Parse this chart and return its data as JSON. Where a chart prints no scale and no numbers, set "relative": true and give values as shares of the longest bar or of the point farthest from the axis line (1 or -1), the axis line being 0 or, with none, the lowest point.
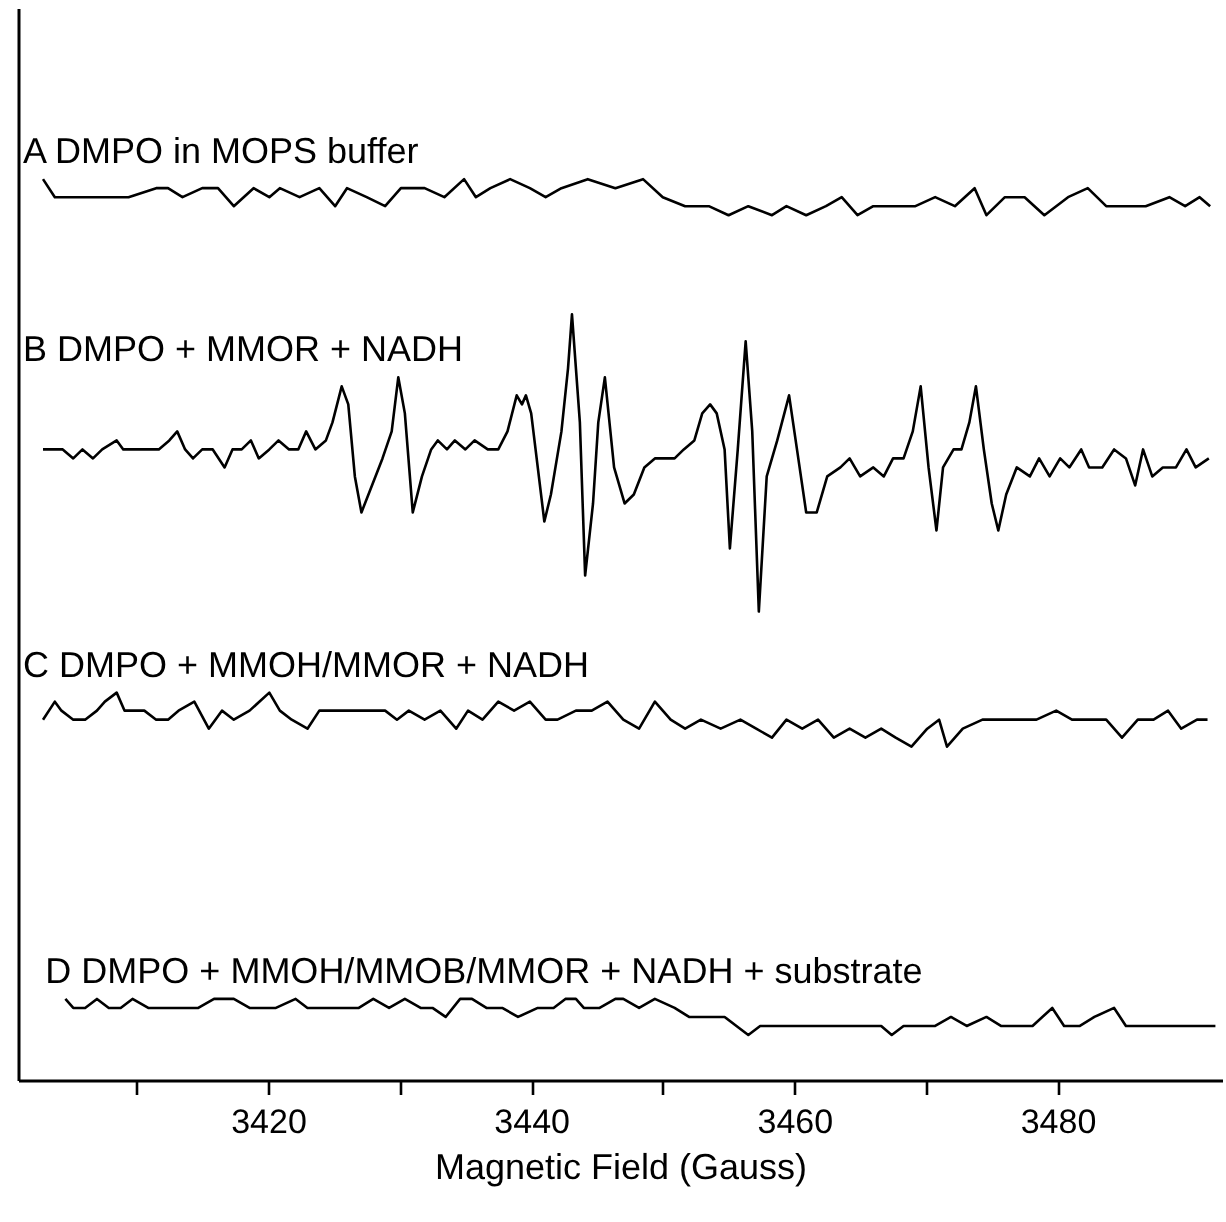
{
  "chart_data": {
    "type": "line",
    "relative": true,
    "xlabel": "Magnetic Field (Gauss)",
    "xlim": [
      3401,
      3492.5
    ],
    "xticks": [
      {
        "value": 3410,
        "label": null
      },
      3420,
      {
        "value": 3430,
        "label": null
      },
      3440,
      {
        "value": 3450,
        "label": null
      },
      3460,
      {
        "value": 3470,
        "label": null
      },
      3480
    ],
    "grid": false,
    "legend": false,
    "series": [
      {
        "name": "A DMPO in MOPS buffer",
        "color": "#000000",
        "x": [
          3402.9,
          3403.8,
          3405.5,
          3406.1,
          3407.9,
          3409.4,
          3411.5,
          3412.4,
          3413.5,
          3415.0,
          3416.2,
          3417.4,
          3418.9,
          3420.1,
          3420.9,
          3422.4,
          3423.9,
          3425.1,
          3426.0,
          3427.5,
          3428.9,
          3430.1,
          3431.9,
          3433.4,
          3434.9,
          3435.8,
          3436.9,
          3438.4,
          3439.9,
          3441.1,
          3442.3,
          3444.3,
          3446.4,
          3448.5,
          3450.0,
          3451.7,
          3453.5,
          3455.0,
          3456.5,
          3458.3,
          3459.4,
          3460.9,
          3462.4,
          3463.6,
          3464.8,
          3466.0,
          3467.7,
          3469.2,
          3470.7,
          3472.2,
          3473.7,
          3474.6,
          3476.0,
          3477.5,
          3479.0,
          3480.8,
          3482.3,
          3483.7,
          3485.2,
          3486.7,
          3488.5,
          3489.7,
          3490.8,
          3491.6
        ],
        "values": [
          1.0,
          0.98,
          0.98,
          0.98,
          0.98,
          0.98,
          0.99,
          0.99,
          0.98,
          0.99,
          0.99,
          0.97,
          0.99,
          0.98,
          0.99,
          0.98,
          0.99,
          0.97,
          0.99,
          0.98,
          0.97,
          0.99,
          0.99,
          0.98,
          1.0,
          0.98,
          0.99,
          1.0,
          0.99,
          0.98,
          0.99,
          1.0,
          0.99,
          1.0,
          0.98,
          0.97,
          0.97,
          0.96,
          0.97,
          0.96,
          0.97,
          0.96,
          0.97,
          0.98,
          0.96,
          0.97,
          0.97,
          0.97,
          0.98,
          0.97,
          0.99,
          0.96,
          0.98,
          0.98,
          0.96,
          0.98,
          0.99,
          0.97,
          0.97,
          0.97,
          0.98,
          0.97,
          0.98,
          0.97
        ],
        "line_style": "solid"
      },
      {
        "name": "B DMPO + MMOR + NADH",
        "color": "#000000",
        "x": [
          3402.9,
          3403.6,
          3404.4,
          3405.2,
          3405.9,
          3406.7,
          3407.4,
          3408.5,
          3409.0,
          3409.7,
          3410.5,
          3411.2,
          3411.7,
          3412.5,
          3413.1,
          3413.7,
          3414.3,
          3415.0,
          3415.8,
          3416.7,
          3417.3,
          3418.0,
          3418.7,
          3419.3,
          3420.1,
          3420.8,
          3421.6,
          3422.3,
          3422.9,
          3423.6,
          3424.4,
          3424.9,
          3425.6,
          3426.1,
          3426.6,
          3427.1,
          3427.9,
          3428.7,
          3429.4,
          3429.9,
          3430.4,
          3431.0,
          3431.7,
          3432.4,
          3432.9,
          3433.6,
          3434.2,
          3435.0,
          3435.7,
          3436.7,
          3437.5,
          3438.2,
          3438.9,
          3439.3,
          3439.6,
          3440.0,
          3440.5,
          3441.0,
          3441.5,
          3442.3,
          3442.8,
          3443.1,
          3443.7,
          3444.1,
          3444.7,
          3445.1,
          3445.6,
          3446.3,
          3447.1,
          3447.8,
          3448.6,
          3449.4,
          3450.1,
          3450.9,
          3451.6,
          3452.4,
          3453.0,
          3453.6,
          3454.1,
          3454.7,
          3455.1,
          3455.7,
          3456.3,
          3456.8,
          3457.3,
          3457.9,
          3458.7,
          3459.6,
          3460.2,
          3460.9,
          3461.7,
          3462.5,
          3463.5,
          3464.2,
          3465.0,
          3466.0,
          3466.8,
          3467.5,
          3468.3,
          3469.0,
          3469.6,
          3470.2,
          3470.8,
          3471.3,
          3472.1,
          3472.7,
          3473.3,
          3473.8,
          3474.4,
          3475.0,
          3475.5,
          3476.1,
          3476.9,
          3477.9,
          3478.6,
          3479.4,
          3480.2,
          3480.9,
          3481.8,
          3482.4,
          3483.4,
          3484.3,
          3485.2,
          3485.9,
          3486.5,
          3487.2,
          3488.0,
          3489.0,
          3489.8,
          3490.5,
          3491.5
        ],
        "values": [
          0.7,
          0.7,
          0.7,
          0.69,
          0.7,
          0.69,
          0.7,
          0.71,
          0.7,
          0.7,
          0.7,
          0.7,
          0.7,
          0.71,
          0.72,
          0.7,
          0.69,
          0.7,
          0.7,
          0.68,
          0.7,
          0.7,
          0.71,
          0.69,
          0.7,
          0.71,
          0.7,
          0.7,
          0.72,
          0.7,
          0.71,
          0.73,
          0.77,
          0.75,
          0.67,
          0.63,
          0.66,
          0.69,
          0.72,
          0.78,
          0.74,
          0.63,
          0.67,
          0.7,
          0.71,
          0.7,
          0.71,
          0.7,
          0.71,
          0.7,
          0.7,
          0.72,
          0.76,
          0.75,
          0.76,
          0.74,
          0.68,
          0.62,
          0.65,
          0.72,
          0.79,
          0.85,
          0.73,
          0.56,
          0.64,
          0.73,
          0.78,
          0.68,
          0.64,
          0.65,
          0.68,
          0.69,
          0.69,
          0.69,
          0.7,
          0.71,
          0.74,
          0.75,
          0.74,
          0.7,
          0.59,
          0.7,
          0.82,
          0.72,
          0.52,
          0.67,
          0.71,
          0.76,
          0.7,
          0.63,
          0.63,
          0.67,
          0.68,
          0.69,
          0.67,
          0.68,
          0.67,
          0.69,
          0.69,
          0.72,
          0.77,
          0.68,
          0.61,
          0.68,
          0.7,
          0.7,
          0.73,
          0.77,
          0.7,
          0.64,
          0.61,
          0.65,
          0.68,
          0.67,
          0.69,
          0.67,
          0.69,
          0.68,
          0.7,
          0.68,
          0.68,
          0.7,
          0.69,
          0.66,
          0.7,
          0.67,
          0.68,
          0.68,
          0.7,
          0.68,
          0.69
        ],
        "line_style": "solid"
      },
      {
        "name": "C DMPO + MMOH/MMOR + NADH",
        "color": "#000000",
        "x": [
          3402.9,
          3403.8,
          3404.3,
          3405.2,
          3406.1,
          3407.0,
          3407.6,
          3408.5,
          3409.1,
          3410.0,
          3410.6,
          3411.5,
          3412.4,
          3413.2,
          3414.4,
          3415.5,
          3416.5,
          3417.4,
          3418.6,
          3420.1,
          3420.9,
          3421.8,
          3423.0,
          3423.9,
          3425.1,
          3426.3,
          3427.8,
          3428.9,
          3429.8,
          3430.7,
          3431.9,
          3433.1,
          3434.3,
          3435.2,
          3436.3,
          3437.5,
          3438.7,
          3439.9,
          3441.1,
          3442.0,
          3443.4,
          3444.6,
          3445.8,
          3447.0,
          3448.2,
          3449.4,
          3450.6,
          3451.7,
          3452.9,
          3454.4,
          3455.9,
          3457.1,
          3458.3,
          3459.4,
          3460.6,
          3461.8,
          3463.0,
          3464.2,
          3465.4,
          3466.6,
          3467.7,
          3468.9,
          3470.1,
          3471.0,
          3471.6,
          3472.8,
          3474.3,
          3475.7,
          3476.9,
          3478.4,
          3479.9,
          3481.1,
          3482.5,
          3483.7,
          3484.9,
          3486.1,
          3487.3,
          3488.4,
          3489.4,
          3490.6,
          3491.4
        ],
        "values": [
          0.4,
          0.42,
          0.41,
          0.4,
          0.4,
          0.41,
          0.42,
          0.43,
          0.41,
          0.41,
          0.41,
          0.4,
          0.4,
          0.41,
          0.42,
          0.39,
          0.41,
          0.4,
          0.41,
          0.43,
          0.41,
          0.4,
          0.39,
          0.41,
          0.41,
          0.41,
          0.41,
          0.41,
          0.4,
          0.41,
          0.4,
          0.41,
          0.39,
          0.41,
          0.4,
          0.42,
          0.41,
          0.42,
          0.4,
          0.4,
          0.41,
          0.41,
          0.42,
          0.4,
          0.39,
          0.42,
          0.4,
          0.39,
          0.4,
          0.39,
          0.4,
          0.39,
          0.38,
          0.4,
          0.39,
          0.4,
          0.38,
          0.39,
          0.38,
          0.39,
          0.38,
          0.37,
          0.39,
          0.4,
          0.37,
          0.39,
          0.4,
          0.4,
          0.4,
          0.4,
          0.41,
          0.4,
          0.4,
          0.4,
          0.38,
          0.4,
          0.4,
          0.41,
          0.39,
          0.4,
          0.4
        ],
        "line_style": "solid"
      },
      {
        "name": "D DMPO + MMOH/MMOB/MMOR + NADH + substrate",
        "color": "#000000",
        "x": [
          3404.6,
          3405.2,
          3406.1,
          3407.0,
          3407.9,
          3408.8,
          3409.7,
          3410.9,
          3412.1,
          3413.2,
          3414.7,
          3415.9,
          3417.4,
          3418.6,
          3419.5,
          3420.6,
          3422.1,
          3423.0,
          3424.5,
          3425.7,
          3426.9,
          3428.0,
          3429.2,
          3430.4,
          3431.6,
          3432.5,
          3433.5,
          3434.6,
          3435.5,
          3436.6,
          3437.8,
          3439.0,
          3440.5,
          3441.7,
          3442.6,
          3443.4,
          3444.0,
          3445.2,
          3446.4,
          3447.0,
          3448.2,
          3449.4,
          3450.9,
          3452.0,
          3453.2,
          3454.7,
          3455.6,
          3456.5,
          3457.4,
          3458.6,
          3459.7,
          3461.2,
          3462.4,
          3463.6,
          3464.8,
          3465.7,
          3466.6,
          3467.4,
          3468.3,
          3469.5,
          3470.7,
          3471.9,
          3473.1,
          3474.6,
          3475.7,
          3476.9,
          3478.1,
          3479.6,
          3480.5,
          3481.7,
          3482.8,
          3484.3,
          3485.2,
          3486.4,
          3487.9,
          3489.4,
          3490.8,
          3492.0
        ],
        "values": [
          0.09,
          0.08,
          0.08,
          0.09,
          0.08,
          0.08,
          0.09,
          0.08,
          0.08,
          0.08,
          0.08,
          0.09,
          0.09,
          0.08,
          0.08,
          0.08,
          0.09,
          0.08,
          0.08,
          0.08,
          0.08,
          0.09,
          0.08,
          0.09,
          0.08,
          0.08,
          0.07,
          0.09,
          0.09,
          0.08,
          0.08,
          0.07,
          0.08,
          0.08,
          0.09,
          0.09,
          0.08,
          0.08,
          0.09,
          0.09,
          0.08,
          0.09,
          0.08,
          0.07,
          0.07,
          0.07,
          0.06,
          0.05,
          0.06,
          0.06,
          0.06,
          0.06,
          0.06,
          0.06,
          0.06,
          0.06,
          0.06,
          0.05,
          0.06,
          0.06,
          0.06,
          0.07,
          0.06,
          0.07,
          0.06,
          0.06,
          0.06,
          0.08,
          0.06,
          0.06,
          0.07,
          0.08,
          0.06,
          0.06,
          0.06,
          0.06,
          0.06,
          0.06
        ],
        "line_style": "solid"
      }
    ]
  }
}
